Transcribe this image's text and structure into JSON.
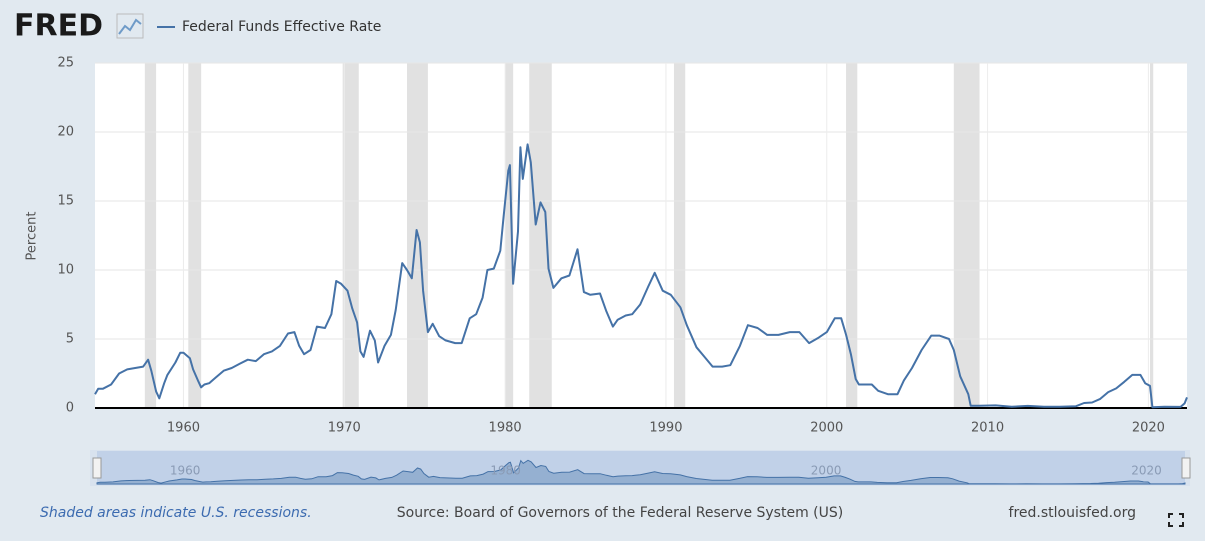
{
  "chart_data": {
    "type": "line",
    "logo": "FRED",
    "title": "Federal Funds Effective Rate",
    "ylabel": "Percent",
    "note": "Shaded areas indicate U.S. recessions.",
    "source": "Source: Board of Governors of the Federal Reserve System (US)",
    "url": "fred.stlouisfed.org",
    "xlim": [
      1954.5,
      2022.4
    ],
    "xticks": [
      1960,
      1970,
      1980,
      1990,
      2000,
      2010,
      2020
    ],
    "ylim": [
      0,
      25
    ],
    "yticks": [
      0,
      5,
      10,
      15,
      20,
      25
    ],
    "grid": true,
    "recession_color": "#e1e1e1",
    "recessions": [
      [
        1957.6,
        1958.3
      ],
      [
        1960.3,
        1961.1
      ],
      [
        1969.9,
        1970.9
      ],
      [
        1973.9,
        1975.2
      ],
      [
        1980.0,
        1980.5
      ],
      [
        1981.5,
        1982.9
      ],
      [
        1990.5,
        1991.2
      ],
      [
        2001.2,
        2001.9
      ],
      [
        2007.9,
        2009.5
      ],
      [
        2020.1,
        2020.3
      ]
    ],
    "x": [
      1954.5,
      1954.7,
      1955.0,
      1955.5,
      1956.0,
      1956.5,
      1957.0,
      1957.5,
      1957.8,
      1958.0,
      1958.3,
      1958.5,
      1958.8,
      1959.0,
      1959.5,
      1959.8,
      1960.0,
      1960.4,
      1960.6,
      1960.9,
      1961.1,
      1961.3,
      1961.6,
      1962.0,
      1962.5,
      1963.0,
      1963.5,
      1964.0,
      1964.5,
      1965.0,
      1965.5,
      1966.0,
      1966.5,
      1966.9,
      1967.2,
      1967.5,
      1967.9,
      1968.3,
      1968.8,
      1969.2,
      1969.5,
      1969.8,
      1970.2,
      1970.5,
      1970.8,
      1971.0,
      1971.2,
      1971.6,
      1971.9,
      1972.1,
      1972.5,
      1972.9,
      1973.2,
      1973.6,
      1973.9,
      1974.2,
      1974.5,
      1974.7,
      1974.9,
      1975.2,
      1975.5,
      1975.9,
      1976.3,
      1976.9,
      1977.3,
      1977.8,
      1978.2,
      1978.6,
      1978.9,
      1979.3,
      1979.7,
      1979.9,
      1980.2,
      1980.3,
      1980.5,
      1980.8,
      1980.95,
      1981.1,
      1981.4,
      1981.6,
      1981.9,
      1982.2,
      1982.5,
      1982.7,
      1983.0,
      1983.5,
      1984.0,
      1984.5,
      1984.9,
      1985.3,
      1985.9,
      1986.3,
      1986.7,
      1987.0,
      1987.5,
      1987.9,
      1988.4,
      1988.9,
      1989.3,
      1989.8,
      1990.3,
      1990.9,
      1991.3,
      1991.9,
      1992.4,
      1992.9,
      1993.5,
      1994.0,
      1994.6,
      1995.1,
      1995.7,
      1996.3,
      1997.0,
      1997.7,
      1998.3,
      1998.9,
      1999.5,
      2000.0,
      2000.5,
      2000.9,
      2001.2,
      2001.5,
      2001.8,
      2002.0,
      2002.8,
      2003.2,
      2003.8,
      2004.4,
      2004.8,
      2005.3,
      2005.9,
      2006.5,
      2007.0,
      2007.6,
      2007.9,
      2008.3,
      2008.8,
      2008.95,
      2009.5,
      2010.5,
      2011.5,
      2012.5,
      2013.5,
      2014.5,
      2015.5,
      2016.0,
      2016.5,
      2017.0,
      2017.5,
      2018.0,
      2018.5,
      2019.0,
      2019.5,
      2019.8,
      2020.1,
      2020.25,
      2021.0,
      2022.0,
      2022.25,
      2022.4
    ],
    "series": [
      {
        "name": "Federal Funds Effective Rate",
        "color": "#4572a7",
        "values": [
          1.0,
          1.4,
          1.4,
          1.7,
          2.5,
          2.8,
          2.9,
          3.0,
          3.5,
          2.7,
          1.2,
          0.7,
          1.8,
          2.4,
          3.3,
          4.0,
          4.0,
          3.6,
          2.8,
          2.0,
          1.5,
          1.7,
          1.8,
          2.2,
          2.7,
          2.9,
          3.2,
          3.5,
          3.4,
          3.9,
          4.1,
          4.5,
          5.4,
          5.5,
          4.5,
          3.9,
          4.2,
          5.9,
          5.8,
          6.8,
          9.2,
          9.0,
          8.5,
          7.2,
          6.2,
          4.1,
          3.7,
          5.6,
          4.9,
          3.3,
          4.5,
          5.3,
          7.1,
          10.5,
          10.0,
          9.4,
          12.9,
          12.0,
          8.5,
          5.5,
          6.1,
          5.2,
          4.9,
          4.7,
          4.7,
          6.5,
          6.8,
          8.0,
          10.0,
          10.1,
          11.4,
          13.8,
          17.2,
          17.6,
          9.0,
          12.8,
          18.9,
          16.6,
          19.1,
          17.8,
          13.3,
          14.9,
          14.2,
          10.1,
          8.7,
          9.4,
          9.6,
          11.5,
          8.4,
          8.2,
          8.3,
          7.0,
          5.9,
          6.4,
          6.7,
          6.8,
          7.5,
          8.8,
          9.8,
          8.5,
          8.2,
          7.3,
          6.0,
          4.4,
          3.7,
          3.0,
          3.0,
          3.1,
          4.5,
          6.0,
          5.8,
          5.3,
          5.3,
          5.5,
          5.5,
          4.7,
          5.1,
          5.5,
          6.5,
          6.5,
          5.3,
          3.9,
          2.1,
          1.7,
          1.7,
          1.25,
          1.0,
          1.0,
          2.0,
          2.9,
          4.2,
          5.25,
          5.25,
          5.0,
          4.2,
          2.3,
          1.0,
          0.16,
          0.16,
          0.19,
          0.09,
          0.15,
          0.09,
          0.09,
          0.13,
          0.36,
          0.4,
          0.66,
          1.15,
          1.42,
          1.9,
          2.4,
          2.4,
          1.8,
          1.6,
          0.05,
          0.09,
          0.08,
          0.33,
          0.77
        ]
      }
    ]
  }
}
